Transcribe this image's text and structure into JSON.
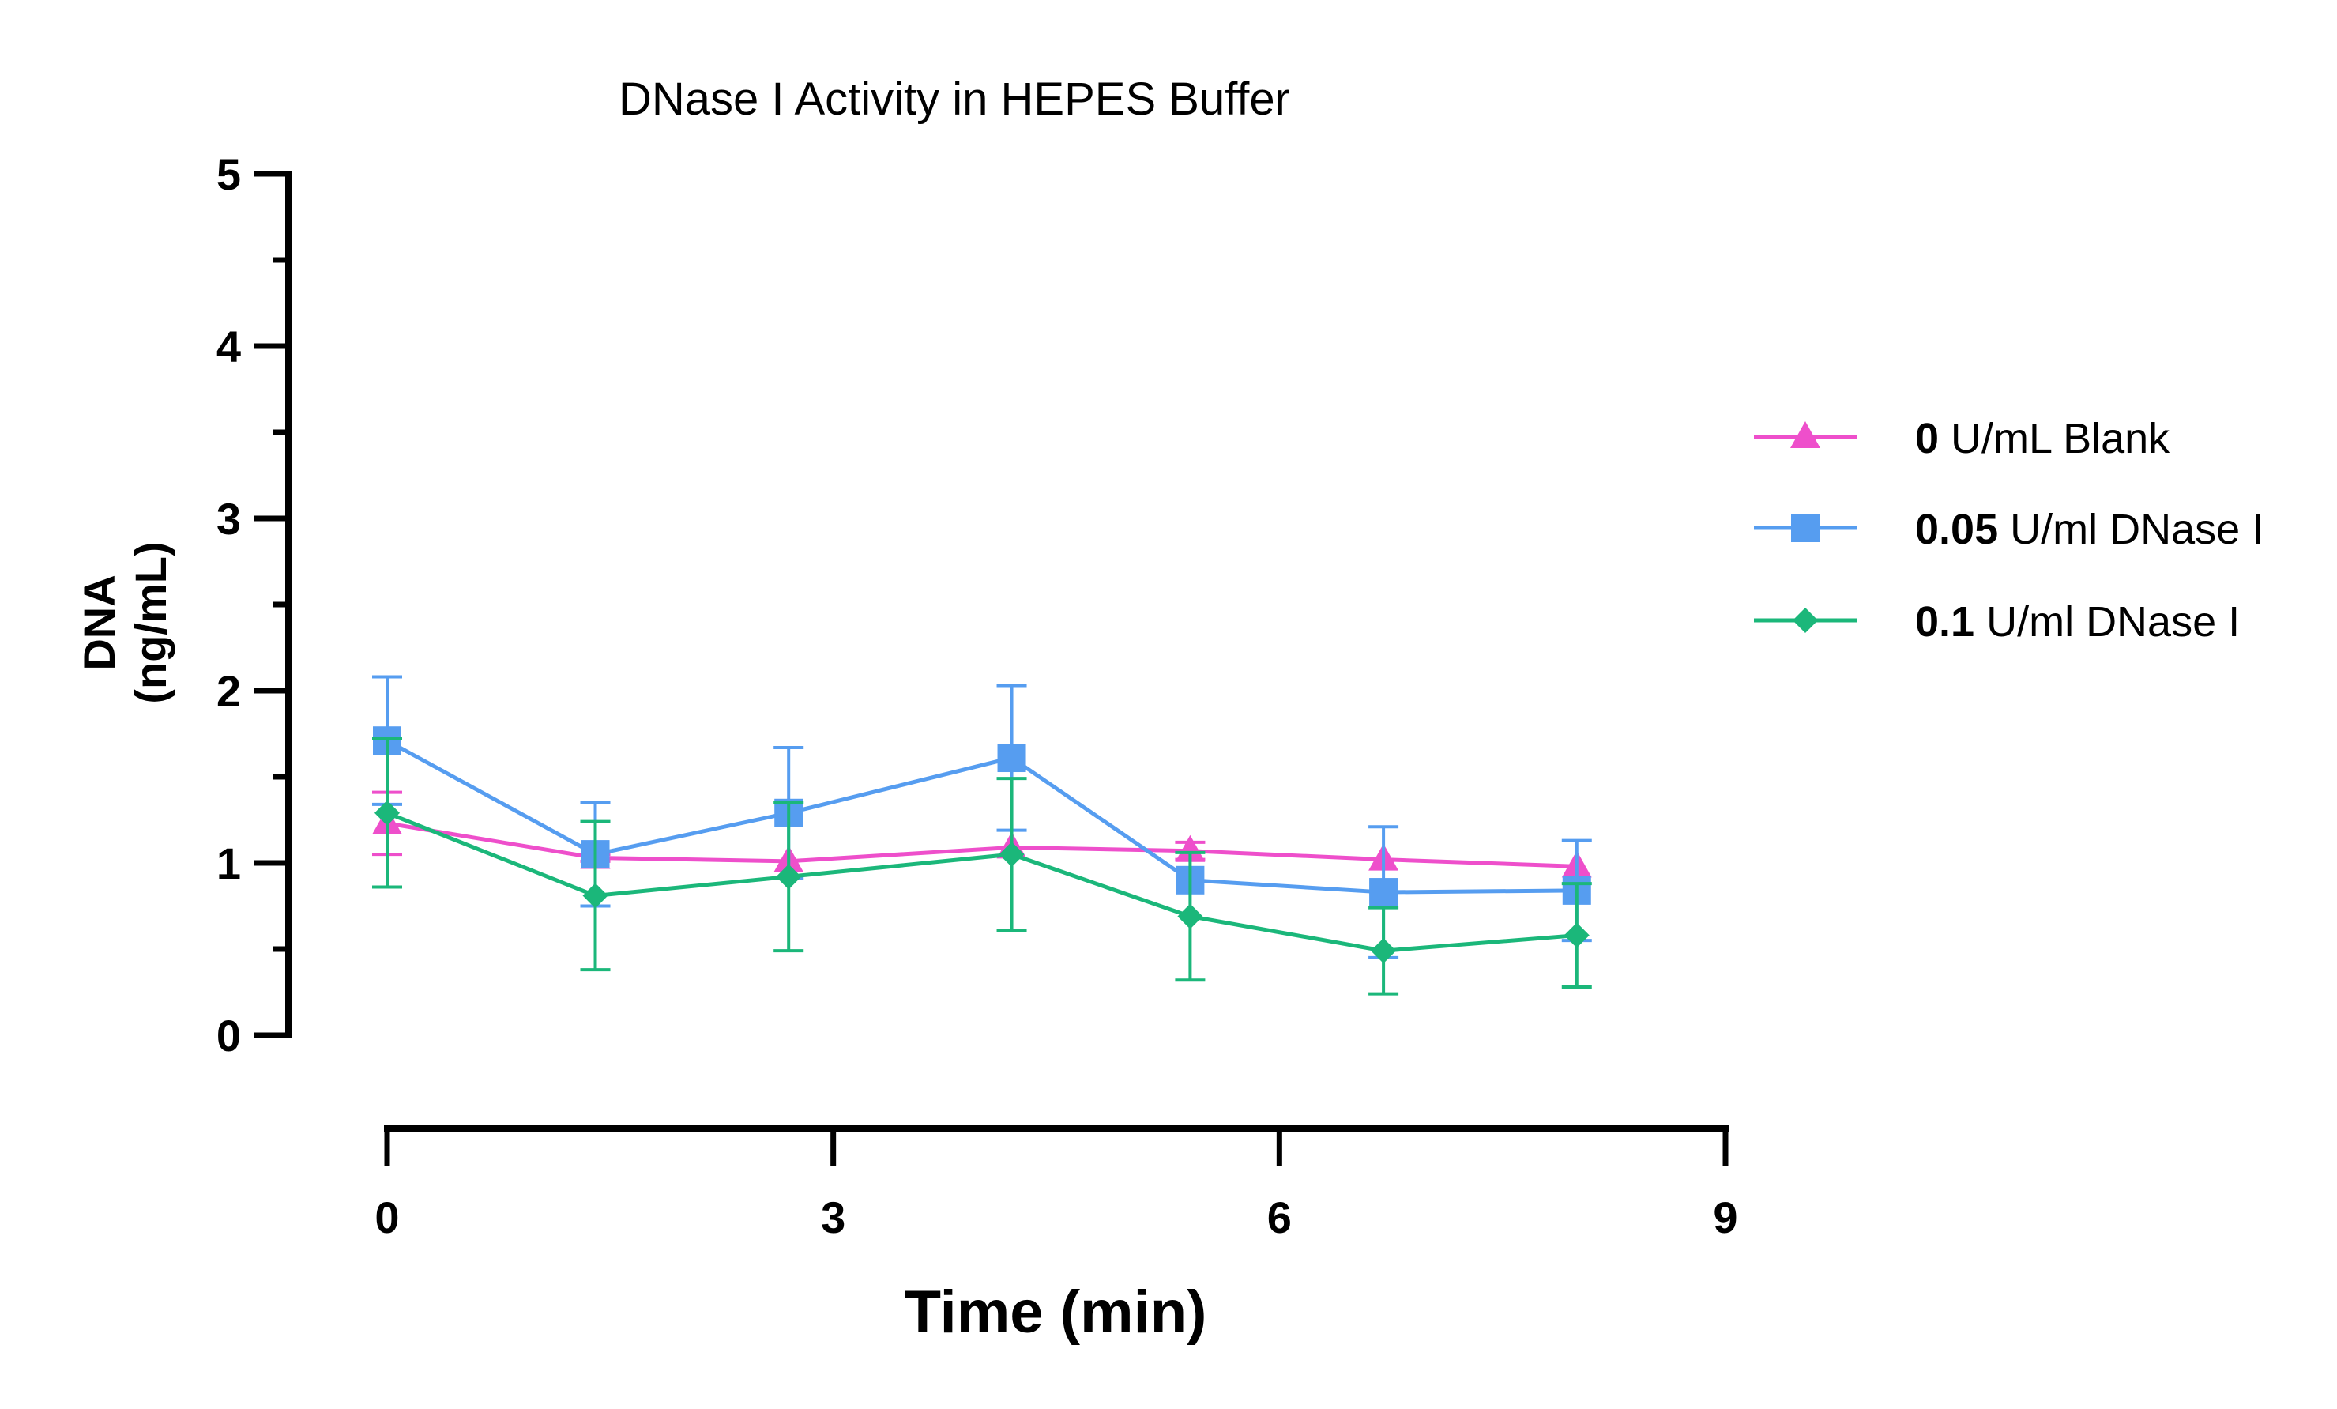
{
  "chart_data": {
    "type": "line",
    "title": "DNase I Activity in HEPES Buffer",
    "xlabel": "Time (min)",
    "ylabel_line1": "DNA",
    "ylabel_line2": "(ng/mL)",
    "xlim": [
      0,
      9
    ],
    "ylim": [
      0,
      5
    ],
    "x_ticks": [
      0,
      3,
      6,
      9
    ],
    "y_ticks": [
      0,
      1,
      2,
      3,
      4,
      5
    ],
    "grid": false,
    "legend_position": "right",
    "series": [
      {
        "name": "0 U/mL Blank",
        "name_bold": "0",
        "name_rest": " U/mL Blank",
        "marker": "triangle",
        "color": "#EE4FCB",
        "x": [
          0,
          1.4,
          2.7,
          4.2,
          5.4,
          6.7,
          8.0
        ],
        "y": [
          1.23,
          1.03,
          1.01,
          1.09,
          1.07,
          1.02,
          0.98
        ],
        "err": [
          0.18,
          0.02,
          0.0,
          0.0,
          0.05,
          0.0,
          0.0
        ]
      },
      {
        "name": "0.05 U/ml DNase I",
        "name_bold": "0.05",
        "name_rest": " U/ml DNase I",
        "marker": "square",
        "color": "#569DF0",
        "x": [
          0,
          1.4,
          2.7,
          4.2,
          5.4,
          6.7,
          8.0
        ],
        "y": [
          1.71,
          1.05,
          1.29,
          1.61,
          0.9,
          0.83,
          0.84
        ],
        "err": [
          0.37,
          0.3,
          0.38,
          0.42,
          0.0,
          0.38,
          0.29
        ]
      },
      {
        "name": "0.1 U/ml DNase I",
        "name_bold": "0.1",
        "name_rest": " U/ml DNase I",
        "marker": "diamond",
        "color": "#1BB77A",
        "x": [
          0,
          1.4,
          2.7,
          4.2,
          5.4,
          6.7,
          8.0
        ],
        "y": [
          1.29,
          0.81,
          0.92,
          1.05,
          0.69,
          0.49,
          0.58
        ],
        "err": [
          0.43,
          0.43,
          0.43,
          0.44,
          0.37,
          0.25,
          0.3
        ]
      }
    ]
  }
}
